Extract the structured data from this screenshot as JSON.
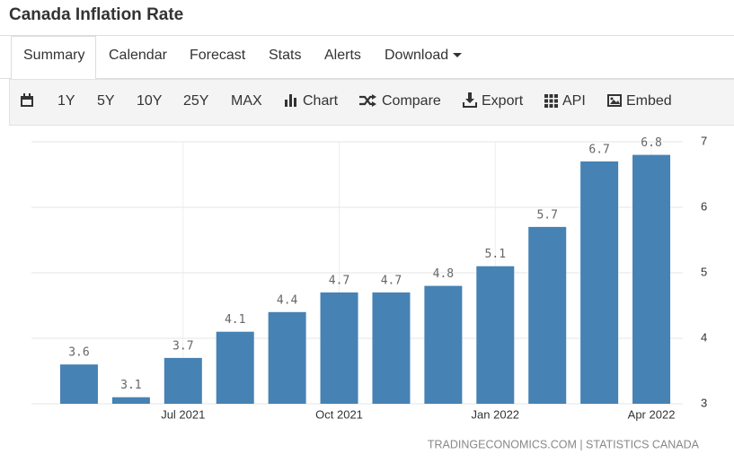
{
  "header": {
    "title": "Canada Inflation Rate"
  },
  "tabs": [
    "Summary",
    "Calendar",
    "Forecast",
    "Stats",
    "Alerts",
    "Download"
  ],
  "toolbar": [
    "1Y",
    "5Y",
    "10Y",
    "25Y",
    "MAX",
    "Chart",
    "Compare",
    "Export",
    "API",
    "Embed"
  ],
  "chart_data": {
    "type": "bar",
    "categories": [
      null,
      null,
      "Jul 2021",
      null,
      null,
      "Oct 2021",
      null,
      null,
      "Jan 2022",
      null,
      null,
      "Apr 2022"
    ],
    "values": [
      3.6,
      3.1,
      3.7,
      4.1,
      4.4,
      4.7,
      4.7,
      4.8,
      5.1,
      5.7,
      6.7,
      6.8
    ],
    "color": "#4682b4",
    "ylim": [
      3,
      7
    ],
    "yticks": [
      3,
      4,
      5,
      6,
      7
    ],
    "grid": true,
    "source": "TRADINGECONOMICS.COM | STATISTICS CANADA"
  }
}
